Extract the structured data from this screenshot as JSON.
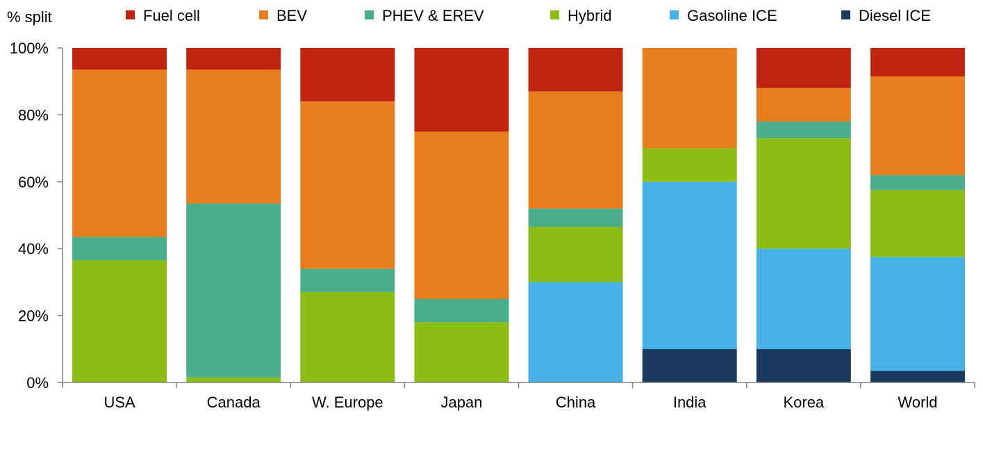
{
  "chart_data": {
    "type": "bar",
    "stacked": true,
    "ylabel": "% split",
    "ylim": [
      0,
      100
    ],
    "y_ticks": [
      "0%",
      "20%",
      "40%",
      "60%",
      "80%",
      "100%"
    ],
    "y_tick_values": [
      0,
      20,
      40,
      60,
      80,
      100
    ],
    "legend_position": "top",
    "grid": false,
    "categories": [
      "USA",
      "Canada",
      "W. Europe",
      "Japan",
      "China",
      "India",
      "Korea",
      "World"
    ],
    "series": [
      {
        "name": "Diesel ICE",
        "color": "#1b3a5f",
        "values": [
          0,
          0,
          0,
          0,
          0,
          10,
          10,
          3.5
        ]
      },
      {
        "name": "Gasoline ICE",
        "color": "#45b1e6",
        "values": [
          0,
          0,
          0,
          0,
          30,
          50,
          30,
          34
        ]
      },
      {
        "name": "Hybrid",
        "color": "#8cbd14",
        "values": [
          36.5,
          1.5,
          27,
          18,
          16.5,
          10,
          33,
          20
        ]
      },
      {
        "name": "PHEV & EREV",
        "color": "#4aae8a",
        "values": [
          7,
          52,
          7,
          7,
          5.5,
          0,
          5,
          4.5
        ]
      },
      {
        "name": "BEV",
        "color": "#e87d1d",
        "values": [
          50,
          40,
          50,
          50,
          35,
          30,
          10,
          29.5
        ]
      },
      {
        "name": "Fuel cell",
        "color": "#c0230e",
        "values": [
          6.5,
          6.5,
          16,
          25,
          13,
          0,
          12,
          8.5
        ]
      }
    ],
    "legend_order": [
      "Fuel cell",
      "BEV",
      "PHEV & EREV",
      "Hybrid",
      "Gasoline ICE",
      "Diesel ICE"
    ]
  }
}
